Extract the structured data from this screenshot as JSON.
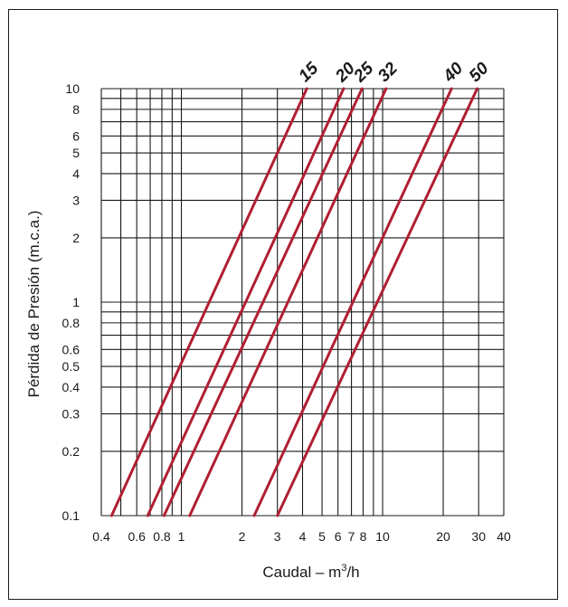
{
  "chart_data": {
    "type": "line",
    "title": "",
    "xlabel_main": "Caudal – m",
    "xlabel_sup": "3",
    "xlabel_tail": "/h",
    "ylabel": "Pérdida de Presión (m.c.a.)",
    "x_scale": "log",
    "y_scale": "log",
    "xlim": [
      0.4,
      40
    ],
    "ylim": [
      0.1,
      10
    ],
    "grid": true,
    "line_color": "#b01f32",
    "x_tick_labels": [
      "0.4",
      "0.6",
      "0.8",
      "1",
      "2",
      "3",
      "4",
      "5",
      "6",
      "7",
      "8",
      "10",
      "20",
      "30",
      "40"
    ],
    "x_tick_values": [
      0.4,
      0.6,
      0.8,
      1,
      2,
      3,
      4,
      5,
      6,
      7,
      8,
      10,
      20,
      30,
      40
    ],
    "y_tick_labels": [
      "10",
      "8",
      "6",
      "5",
      "4",
      "3",
      "2",
      "1",
      "0.8",
      "0.6",
      "0.5",
      "0.4",
      "0.3",
      "0.2",
      "0.1"
    ],
    "y_tick_values": [
      10,
      8,
      6,
      5,
      4,
      3,
      2,
      1,
      0.8,
      0.6,
      0.5,
      0.4,
      0.3,
      0.2,
      0.1
    ],
    "series": [
      {
        "name": "15",
        "x": [
          0.45,
          4.2
        ],
        "y": [
          0.1,
          10
        ]
      },
      {
        "name": "20",
        "x": [
          0.68,
          6.4
        ],
        "y": [
          0.1,
          10
        ]
      },
      {
        "name": "25",
        "x": [
          0.82,
          7.9
        ],
        "y": [
          0.1,
          10
        ]
      },
      {
        "name": "32",
        "x": [
          1.1,
          10.4
        ],
        "y": [
          0.1,
          10
        ]
      },
      {
        "name": "40",
        "x": [
          2.3,
          22
        ],
        "y": [
          0.1,
          10
        ]
      },
      {
        "name": "50",
        "x": [
          3.0,
          29.5
        ],
        "y": [
          0.1,
          10
        ]
      }
    ]
  }
}
